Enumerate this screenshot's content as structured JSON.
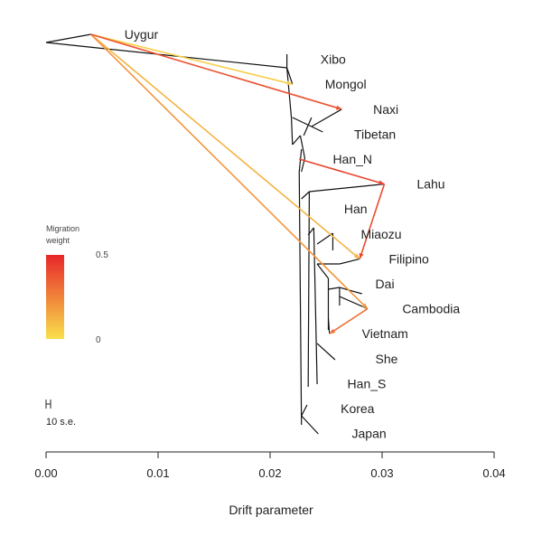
{
  "chart_data": {
    "type": "tree",
    "xlabel": "Drift parameter",
    "xlim": [
      0,
      0.04
    ],
    "xticks": [
      "0.00",
      "0.01",
      "0.02",
      "0.03",
      "0.04"
    ],
    "scale_bar_label": "10 s.e.",
    "legend": {
      "title_line1": "Migration",
      "title_line2": "weight",
      "max_label": "0.5",
      "min_label": "0",
      "color_high": "#e8262a",
      "color_low": "#f9e04b"
    },
    "tips": [
      {
        "name": "Uygur",
        "drift": 0.004,
        "label_drift": 0.007,
        "row": 0
      },
      {
        "name": "Xibo",
        "drift": 0.0215,
        "label_drift": 0.0245,
        "row": 1
      },
      {
        "name": "Mongol",
        "drift": 0.022,
        "label_drift": 0.0249,
        "row": 2
      },
      {
        "name": "Naxi",
        "drift": 0.0264,
        "label_drift": 0.0292,
        "row": 3
      },
      {
        "name": "Tibetan",
        "drift": 0.0247,
        "label_drift": 0.0275,
        "row": 4
      },
      {
        "name": "Han_N",
        "drift": 0.0226,
        "label_drift": 0.0256,
        "row": 5
      },
      {
        "name": "Lahu",
        "drift": 0.0302,
        "label_drift": 0.0331,
        "row": 6
      },
      {
        "name": "Han",
        "drift": 0.0239,
        "label_drift": 0.0266,
        "row": 7
      },
      {
        "name": "Miaozu",
        "drift": 0.0252,
        "label_drift": 0.0281,
        "row": 8
      },
      {
        "name": "Filipino",
        "drift": 0.028,
        "label_drift": 0.0306,
        "row": 9
      },
      {
        "name": "Dai",
        "drift": 0.0256,
        "label_drift": 0.0294,
        "row": 10
      },
      {
        "name": "Cambodia",
        "drift": 0.0287,
        "label_drift": 0.0318,
        "row": 11
      },
      {
        "name": "Vietnam",
        "drift": 0.0253,
        "label_drift": 0.0282,
        "row": 12
      },
      {
        "name": "She",
        "drift": 0.0258,
        "label_drift": 0.0294,
        "row": 13
      },
      {
        "name": "Han_S",
        "drift": 0.024,
        "label_drift": 0.0269,
        "row": 14
      },
      {
        "name": "Korea",
        "drift": 0.0229,
        "label_drift": 0.0263,
        "row": 15
      },
      {
        "name": "Japan",
        "drift": 0.0242,
        "label_drift": 0.0273,
        "row": 16
      }
    ],
    "migration_edges": [
      {
        "from": "Uygur",
        "to": "Mongol",
        "weight": 0.05
      },
      {
        "from": "Uygur",
        "to": "Filipino",
        "weight": 0.12
      },
      {
        "from": "Uygur",
        "to": "Cambodia",
        "weight": 0.2
      },
      {
        "from": "Uygur",
        "to": "Naxi",
        "weight": 0.38
      },
      {
        "from": "Han_N",
        "to": "Lahu",
        "weight": 0.42
      },
      {
        "from": "Lahu",
        "to": "Filipino",
        "weight": 0.4
      },
      {
        "from": "Cambodia",
        "to": "Vietnam",
        "weight": 0.3
      }
    ]
  }
}
